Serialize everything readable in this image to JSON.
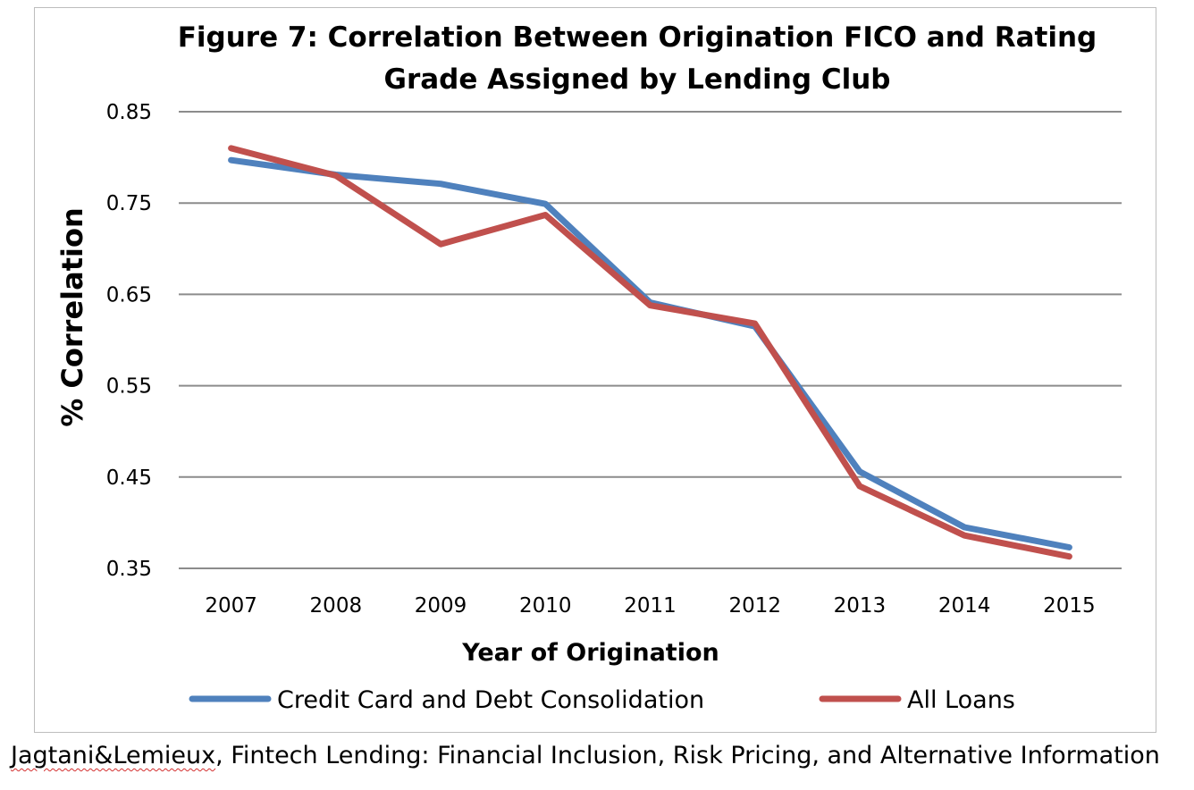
{
  "chart_data": {
    "type": "line",
    "title_lines": [
      "Figure 7: Correlation Between Origination FICO and Rating",
      "Grade Assigned by Lending Club"
    ],
    "xlabel": "Year of Origination",
    "ylabel": "% Correlation",
    "categories": [
      "2007",
      "2008",
      "2009",
      "2010",
      "2011",
      "2012",
      "2013",
      "2014",
      "2015"
    ],
    "ylim": [
      0.35,
      0.85
    ],
    "yticks": [
      0.35,
      0.45,
      0.55,
      0.65,
      0.75,
      0.85
    ],
    "ytick_labels": [
      "0.35",
      "0.45",
      "0.55",
      "0.65",
      "0.75",
      "0.85"
    ],
    "grid": true,
    "legend_position": "bottom",
    "series": [
      {
        "name": "Credit Card and Debt Consolidation",
        "color": "#4f81bd",
        "values": [
          0.797,
          0.781,
          0.771,
          0.749,
          0.641,
          0.615,
          0.456,
          0.395,
          0.373
        ]
      },
      {
        "name": "All Loans",
        "color": "#c0504d",
        "values": [
          0.81,
          0.78,
          0.705,
          0.737,
          0.638,
          0.618,
          0.44,
          0.386,
          0.363
        ]
      }
    ]
  },
  "caption": {
    "author": "Jagtani&Lemieux",
    "rest": ", Fintech Lending: Financial Inclusion, Risk Pricing, and Alternative Information"
  }
}
